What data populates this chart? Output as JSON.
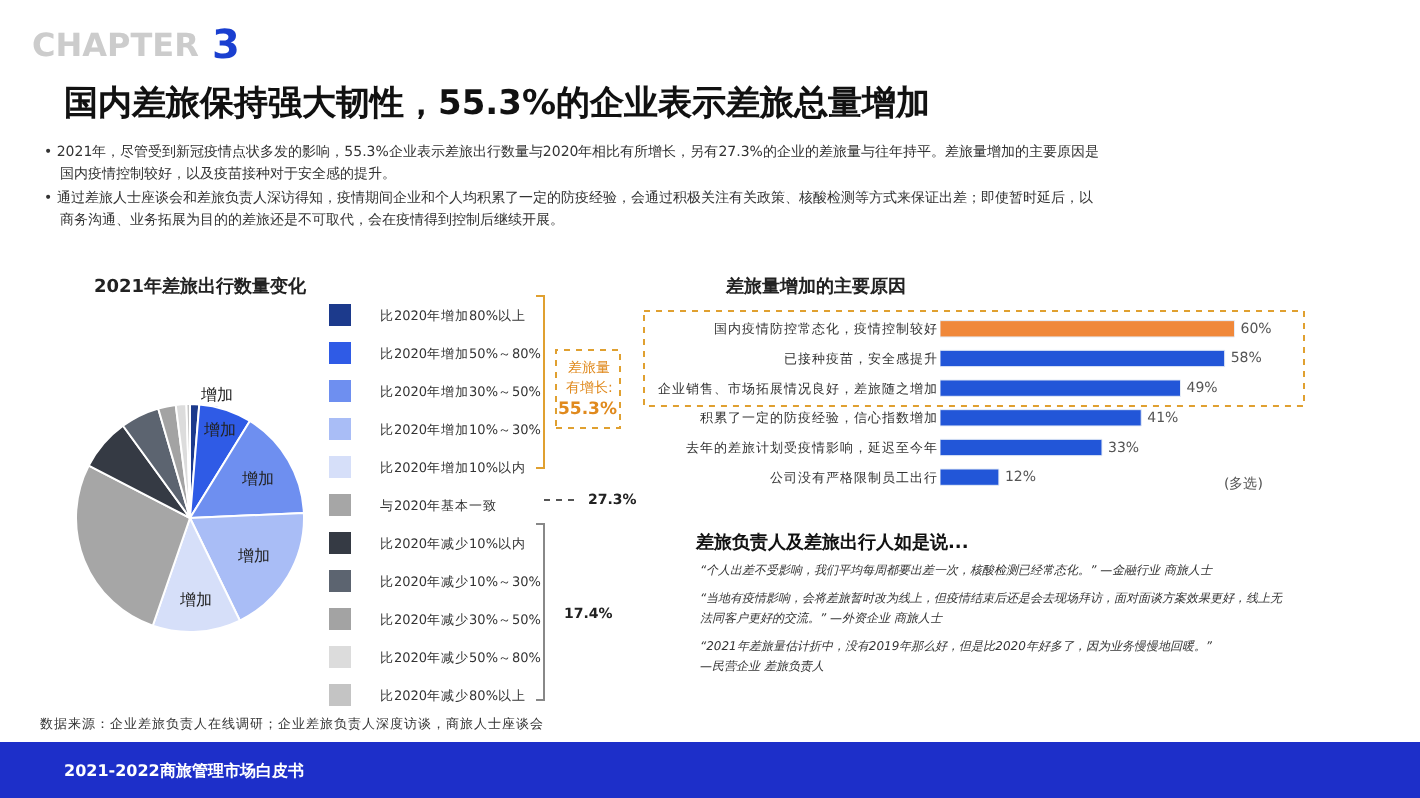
{
  "chart_data": [
    {
      "type": "pie",
      "title": "2021年差旅出行数量变化",
      "categories": [
        "比2020年增加80%以上",
        "比2020年增加50%～80%",
        "比2020年增加30%～50%",
        "比2020年增加10%～30%",
        "比2020年增加10%以内",
        "与2020年基本一致",
        "比2020年减少10%以内",
        "比2020年减少10%～30%",
        "比2020年减少30%～50%",
        "比2020年减少50%～80%",
        "比2020年减少80%以上"
      ],
      "values": [
        1.3,
        7.5,
        15.5,
        18.5,
        12.5,
        27.3,
        7.4,
        5.5,
        2.5,
        1.5,
        0.5
      ],
      "colors": [
        "#1c3a8c",
        "#2f5be6",
        "#6e8ff0",
        "#a9bdf6",
        "#d6dff9",
        "#a6a6a6",
        "#353a44",
        "#5c6470",
        "#a3a3a3",
        "#dcdcdc",
        "#c4c4c4"
      ],
      "value_labels": [
        "增加",
        "增加",
        "增加",
        "增加",
        "增加",
        null,
        null,
        null,
        null,
        null,
        null
      ],
      "legend": "right",
      "annotations": [
        "CHAPTER",
        "3",
        "国内差旅保持强大韧性，55.3%的企业表示差旅总量增加",
        "• 2021年，尽管受到新冠疫情点状多发的影响，55.3%企业表示差旅出行数量与2020年相比有所增长，另有27.3%的企业的差旅量与往年持平。差旅量增加的主要原因是",
        "国内疫情控制较好，以及疫苗接种对于安全感的提升。",
        "• 通过差旅人士座谈会和差旅负责人深访得知，疫情期间企业和个人均积累了一定的防疫经验，会通过积极关注有关政策、核酸检测等方式来保证出差；即使暂时延后，以",
        "商务沟通、业务拓展为目的的差旅还是不可取代，会在疫情得到控制后继续开展。",
        "差旅量",
        "有增长:",
        "55.3%",
        "27.3%",
        "17.4%",
        "数据来源：企业差旅负责人在线调研；企业差旅负责人深度访谈，商旅人士座谈会",
        "2021-2022商旅管理市场白皮书"
      ]
    },
    {
      "type": "bar",
      "orientation": "horizontal",
      "title": "差旅量增加的主要原因",
      "categories": [
        "国内疫情防控常态化，疫情控制较好",
        "已接种疫苗，安全感提升",
        "企业销售、市场拓展情况良好，差旅随之增加",
        "积累了一定的防疫经验，信心指数增加",
        "去年的差旅计划受疫情影响，延迟至今年",
        "公司没有严格限制员工出行"
      ],
      "values": [
        60,
        58,
        49,
        41,
        33,
        12
      ],
      "colors": [
        "#f0883a",
        "#2256d8",
        "#2256d8",
        "#2256d8",
        "#2256d8",
        "#2256d8"
      ],
      "value_labels": [
        "60%",
        "58%",
        "49%",
        "41%",
        "33%",
        "12%"
      ],
      "tick_labels": "y",
      "annotations": [
        "(多选)",
        "差旅负责人及差旅出行人如是说...",
        "“个人出差不受影响，我们平均每周都要出差一次，核酸检测已经常态化。” —金融行业 商旅人士",
        "“当地有疫情影响，会将差旅暂时改为线上，但疫情结束后还是会去现场拜访，面对面谈方案效果更好，线上无",
        "法同客户更好的交流。” —外资企业 商旅人士",
        "“2021年差旅量估计折中，没有2019年那么好，但是比2020年好多了，因为业务慢慢地回暖。”",
        "—民营企业 差旅负责人"
      ]
    }
  ]
}
